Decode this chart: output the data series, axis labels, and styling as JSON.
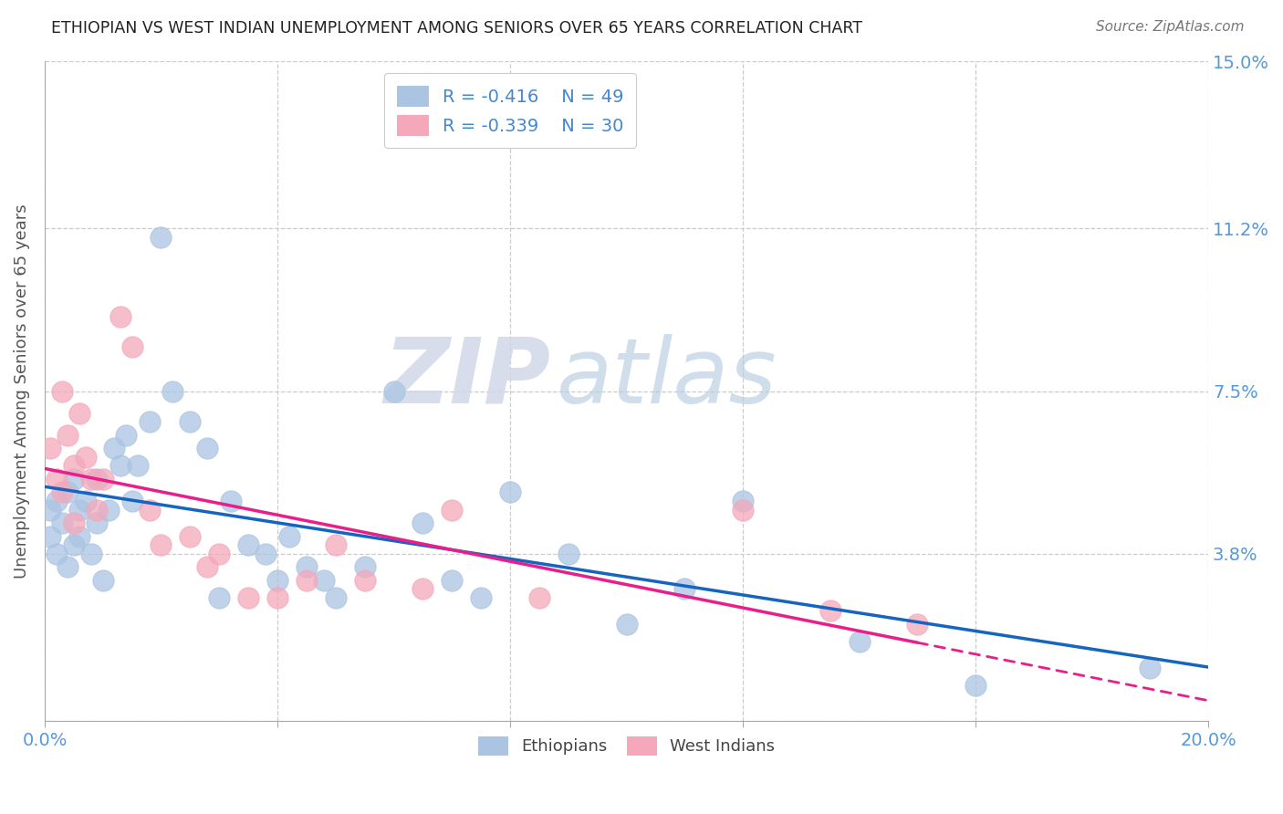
{
  "title": "ETHIOPIAN VS WEST INDIAN UNEMPLOYMENT AMONG SENIORS OVER 65 YEARS CORRELATION CHART",
  "source": "Source: ZipAtlas.com",
  "ylabel": "Unemployment Among Seniors over 65 years",
  "xlim": [
    0.0,
    0.2
  ],
  "ylim": [
    0.0,
    0.15
  ],
  "xticks": [
    0.0,
    0.04,
    0.08,
    0.12,
    0.16,
    0.2
  ],
  "xticklabels": [
    "0.0%",
    "",
    "",
    "",
    "",
    "20.0%"
  ],
  "yticks_right": [
    0.0,
    0.038,
    0.075,
    0.112,
    0.15
  ],
  "yticklabels_right": [
    "",
    "3.8%",
    "7.5%",
    "11.2%",
    "15.0%"
  ],
  "ethiopian_R": -0.416,
  "ethiopian_N": 49,
  "west_indian_R": -0.339,
  "west_indian_N": 30,
  "ethiopian_color": "#aac4e2",
  "west_indian_color": "#f4a8ba",
  "ethiopian_line_color": "#1565C0",
  "west_indian_line_color": "#E91E8C",
  "background_color": "#ffffff",
  "watermark_zip": "ZIP",
  "watermark_atlas": "atlas",
  "ethiopians_x": [
    0.001,
    0.001,
    0.002,
    0.002,
    0.003,
    0.004,
    0.004,
    0.005,
    0.005,
    0.006,
    0.006,
    0.007,
    0.008,
    0.009,
    0.009,
    0.01,
    0.011,
    0.012,
    0.013,
    0.014,
    0.015,
    0.016,
    0.018,
    0.02,
    0.022,
    0.025,
    0.028,
    0.03,
    0.032,
    0.035,
    0.038,
    0.04,
    0.042,
    0.045,
    0.048,
    0.05,
    0.055,
    0.06,
    0.065,
    0.07,
    0.075,
    0.08,
    0.09,
    0.1,
    0.11,
    0.12,
    0.14,
    0.16,
    0.19
  ],
  "ethiopians_y": [
    0.048,
    0.042,
    0.05,
    0.038,
    0.045,
    0.052,
    0.035,
    0.055,
    0.04,
    0.048,
    0.042,
    0.05,
    0.038,
    0.055,
    0.045,
    0.032,
    0.048,
    0.062,
    0.058,
    0.065,
    0.05,
    0.058,
    0.068,
    0.11,
    0.075,
    0.068,
    0.062,
    0.028,
    0.05,
    0.04,
    0.038,
    0.032,
    0.042,
    0.035,
    0.032,
    0.028,
    0.035,
    0.075,
    0.045,
    0.032,
    0.028,
    0.052,
    0.038,
    0.022,
    0.03,
    0.05,
    0.018,
    0.008,
    0.012
  ],
  "west_indians_x": [
    0.001,
    0.002,
    0.003,
    0.003,
    0.004,
    0.005,
    0.005,
    0.006,
    0.007,
    0.008,
    0.009,
    0.01,
    0.013,
    0.015,
    0.018,
    0.02,
    0.025,
    0.028,
    0.03,
    0.035,
    0.04,
    0.045,
    0.05,
    0.055,
    0.065,
    0.07,
    0.085,
    0.12,
    0.135,
    0.15
  ],
  "west_indians_y": [
    0.062,
    0.055,
    0.075,
    0.052,
    0.065,
    0.058,
    0.045,
    0.07,
    0.06,
    0.055,
    0.048,
    0.055,
    0.092,
    0.085,
    0.048,
    0.04,
    0.042,
    0.035,
    0.038,
    0.028,
    0.028,
    0.032,
    0.04,
    0.032,
    0.03,
    0.048,
    0.028,
    0.048,
    0.025,
    0.022
  ]
}
